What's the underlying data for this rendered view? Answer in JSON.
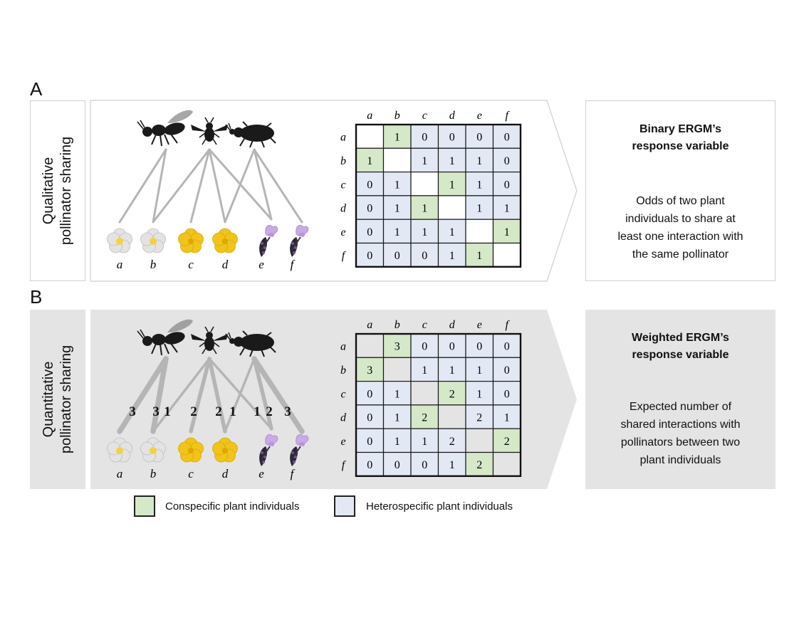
{
  "colors": {
    "conspecific": "#d5e8c8",
    "heterospecific": "#e2e8f4",
    "panel_a_bg": "#ffffff",
    "panel_b_bg": "#e4e4e4",
    "border_a": "#cfcfcf",
    "link": "#b5b5b5",
    "insect": "#1a1a1a",
    "flower_white": "#dcdcdc",
    "flower_yellow": "#f0c419",
    "flower_lavender": "#c9a9e6"
  },
  "plant_labels": [
    "a",
    "b",
    "c",
    "d",
    "e",
    "f"
  ],
  "panels": [
    {
      "letter": "A",
      "side_label_line1": "Qualitative",
      "side_label_line2": "pollinator sharing",
      "matrix": [
        [
          "",
          "1",
          "0",
          "0",
          "0",
          "0"
        ],
        [
          "1",
          "",
          "1",
          "1",
          "1",
          "0"
        ],
        [
          "0",
          "1",
          "",
          "1",
          "1",
          "0"
        ],
        [
          "0",
          "1",
          "1",
          "",
          "1",
          "1"
        ],
        [
          "0",
          "1",
          "1",
          "1",
          "",
          "1"
        ],
        [
          "0",
          "0",
          "0",
          "1",
          "1",
          ""
        ]
      ],
      "link_weights": [],
      "result_title_line1": "Binary ERGM’s",
      "result_title_line2": "response variable",
      "result_desc_lines": [
        "Odds of two plant",
        "individuals to share at",
        "least one interaction with",
        "the same pollinator"
      ]
    },
    {
      "letter": "B",
      "side_label_line1": "Quantitative",
      "side_label_line2": "pollinator sharing",
      "matrix": [
        [
          "",
          "3",
          "0",
          "0",
          "0",
          "0"
        ],
        [
          "3",
          "",
          "1",
          "1",
          "1",
          "0"
        ],
        [
          "0",
          "1",
          "",
          "2",
          "1",
          "0"
        ],
        [
          "0",
          "1",
          "2",
          "",
          "2",
          "1"
        ],
        [
          "0",
          "1",
          "1",
          "2",
          "",
          "2"
        ],
        [
          "0",
          "0",
          "0",
          "1",
          "2",
          ""
        ]
      ],
      "link_weights": [
        "3",
        "3",
        "1",
        "2",
        "2",
        "1",
        "1",
        "2",
        "3"
      ],
      "result_title_line1": "Weighted ERGM’s",
      "result_title_line2": "response variable",
      "result_desc_lines": [
        "Expected number of",
        "shared interactions with",
        "pollinators between two",
        "plant individuals"
      ]
    }
  ],
  "conspecific_pairs": [
    [
      0,
      1
    ],
    [
      1,
      0
    ],
    [
      2,
      3
    ],
    [
      3,
      2
    ],
    [
      4,
      5
    ],
    [
      5,
      4
    ]
  ],
  "links": [
    {
      "pollinator": 0,
      "plant": 0
    },
    {
      "pollinator": 0,
      "plant": 1
    },
    {
      "pollinator": 1,
      "plant": 1
    },
    {
      "pollinator": 1,
      "plant": 2
    },
    {
      "pollinator": 1,
      "plant": 3
    },
    {
      "pollinator": 1,
      "plant": 4
    },
    {
      "pollinator": 2,
      "plant": 3
    },
    {
      "pollinator": 2,
      "plant": 4
    },
    {
      "pollinator": 2,
      "plant": 5
    }
  ],
  "legend": {
    "conspecific_label": "Conspecific plant individuals",
    "heterospecific_label": "Heterospecific plant individuals"
  }
}
